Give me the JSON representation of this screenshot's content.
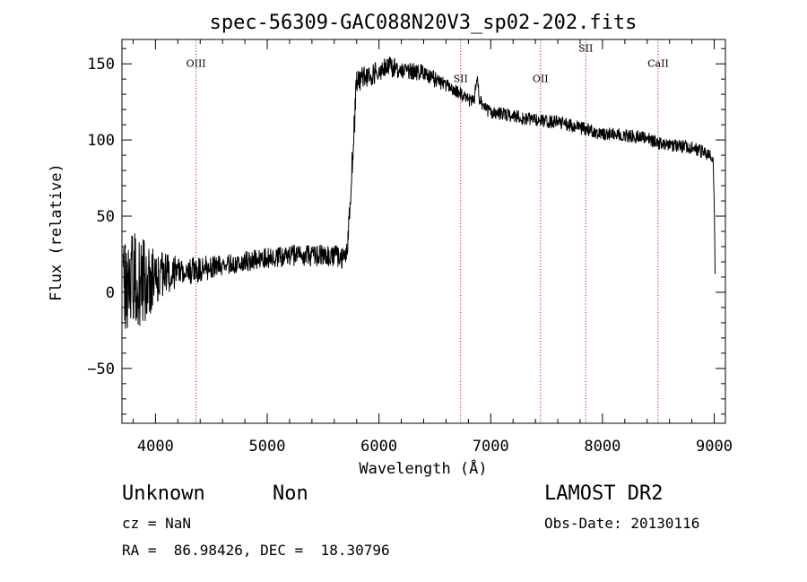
{
  "chart_data": {
    "type": "line",
    "title": "spec-56309-GAC088N20V3_sp02-202.fits",
    "xlabel": "Wavelength (Å)",
    "ylabel": "Flux (relative)",
    "xlim": [
      3700,
      9100
    ],
    "ylim": [
      -86,
      166
    ],
    "xticks": [
      "4000",
      "5000",
      "6000",
      "7000",
      "8000",
      "9000"
    ],
    "yticks": [
      "−50",
      "0",
      "50",
      "100",
      "150"
    ],
    "xtick_values": [
      4000,
      5000,
      6000,
      7000,
      8000,
      9000
    ],
    "ytick_values": [
      -50,
      0,
      50,
      100,
      150
    ],
    "line_color": "#000000",
    "marker_color": "#b22222",
    "spectral_lines": [
      {
        "label": "OIII",
        "x": 4363,
        "label_y": 148
      },
      {
        "label": "SII",
        "x": 6731,
        "label_y": 138
      },
      {
        "label": "OII",
        "x": 7445,
        "label_y": 138
      },
      {
        "label": "SII",
        "x": 7850,
        "label_y": 158
      },
      {
        "label": "CaII",
        "x": 8498,
        "label_y": 148
      }
    ],
    "spectrum_anchors": {
      "x": [
        3710,
        3800,
        3900,
        4000,
        4100,
        4200,
        4400,
        4600,
        4800,
        5000,
        5200,
        5400,
        5600,
        5700,
        5720,
        5750,
        5780,
        5800,
        5900,
        6000,
        6100,
        6200,
        6300,
        6400,
        6500,
        6600,
        6700,
        6800,
        6850,
        6880,
        6900,
        6950,
        7000,
        7100,
        7200,
        7300,
        7400,
        7500,
        7600,
        7700,
        7800,
        7900,
        8000,
        8100,
        8200,
        8300,
        8400,
        8500,
        8600,
        8700,
        8800,
        8900,
        8990,
        9000,
        9010
      ],
      "y": [
        10,
        8,
        6,
        8,
        12,
        14,
        15,
        18,
        20,
        22,
        24,
        24,
        24,
        22,
        30,
        70,
        110,
        140,
        142,
        145,
        148,
        146,
        145,
        144,
        140,
        136,
        132,
        126,
        126,
        140,
        126,
        120,
        118,
        117,
        116,
        114,
        113,
        112,
        112,
        110,
        108,
        106,
        104,
        104,
        103,
        102,
        101,
        98,
        97,
        96,
        95,
        92,
        88,
        60,
        0
      ],
      "noise": [
        26,
        24,
        20,
        14,
        10,
        7,
        6,
        5,
        5,
        5,
        5,
        5,
        5,
        5,
        5,
        8,
        8,
        6,
        5,
        5,
        5,
        4,
        4,
        4,
        4,
        3,
        3,
        3,
        3,
        3,
        3,
        3,
        3,
        3,
        3,
        3,
        3,
        3,
        3,
        3,
        3,
        3,
        3,
        3,
        3,
        3,
        3,
        3,
        3,
        3,
        3,
        3,
        3,
        0,
        0
      ]
    }
  },
  "info": {
    "class": "Unknown",
    "subclass": "Non",
    "survey": "LAMOST DR2",
    "cz": "cz = NaN",
    "obs_date": "Obs-Date: 20130116",
    "coords": "RA =  86.98426, DEC =  18.30796"
  }
}
